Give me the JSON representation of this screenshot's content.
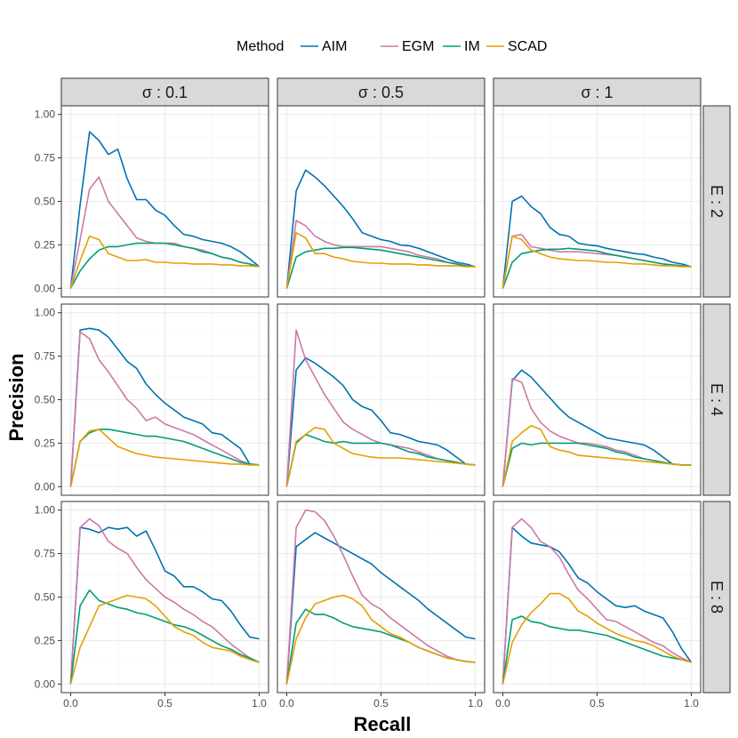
{
  "chart_data": {
    "type": "line",
    "xlabel": "Recall",
    "ylabel": "Precision",
    "xlim": [
      0,
      1
    ],
    "ylim": [
      0,
      1
    ],
    "xticks": [
      0,
      0.5,
      1
    ],
    "xtick_labels": [
      "0.0",
      "0.5",
      "1.0"
    ],
    "yticks": [
      0,
      0.25,
      0.5,
      0.75,
      1
    ],
    "ytick_labels": [
      "0.00",
      "0.25",
      "0.50",
      "0.75",
      "1.00"
    ],
    "grid": true,
    "legend": {
      "title": "Method",
      "position": "top",
      "entries": [
        {
          "name": "AIM",
          "color": "#0072B2"
        },
        {
          "name": "EGM",
          "color": "#CC79A7"
        },
        {
          "name": "IM",
          "color": "#009E73"
        },
        {
          "name": "SCAD",
          "color": "#E69F00"
        }
      ]
    },
    "col_strips": [
      "σ : 0.1",
      "σ : 0.5",
      "σ : 1"
    ],
    "row_strips": [
      "E : 2",
      "E : 4",
      "E : 8"
    ],
    "x": [
      0,
      0.05,
      0.1,
      0.15,
      0.2,
      0.25,
      0.3,
      0.35,
      0.4,
      0.45,
      0.5,
      0.55,
      0.6,
      0.65,
      0.7,
      0.75,
      0.8,
      0.85,
      0.9,
      0.95,
      1.0
    ],
    "panels": [
      {
        "row": 0,
        "col": 0,
        "series": {
          "AIM": [
            0,
            0.48,
            0.9,
            0.85,
            0.77,
            0.8,
            0.63,
            0.51,
            0.51,
            0.45,
            0.42,
            0.36,
            0.31,
            0.3,
            0.28,
            0.27,
            0.26,
            0.24,
            0.21,
            0.17,
            0.125
          ],
          "EGM": [
            0,
            0.28,
            0.57,
            0.64,
            0.5,
            0.43,
            0.36,
            0.29,
            0.27,
            0.26,
            0.26,
            0.26,
            0.24,
            0.23,
            0.22,
            0.2,
            0.18,
            0.17,
            0.15,
            0.14,
            0.125
          ],
          "IM": [
            0,
            0.1,
            0.17,
            0.22,
            0.24,
            0.24,
            0.25,
            0.26,
            0.26,
            0.26,
            0.26,
            0.25,
            0.24,
            0.23,
            0.21,
            0.2,
            0.18,
            0.17,
            0.15,
            0.14,
            0.125
          ],
          "SCAD": [
            0,
            0.16,
            0.3,
            0.28,
            0.2,
            0.18,
            0.16,
            0.16,
            0.165,
            0.15,
            0.15,
            0.145,
            0.145,
            0.14,
            0.14,
            0.14,
            0.135,
            0.135,
            0.13,
            0.13,
            0.125
          ]
        }
      },
      {
        "row": 0,
        "col": 1,
        "series": {
          "AIM": [
            0,
            0.56,
            0.68,
            0.64,
            0.59,
            0.53,
            0.47,
            0.4,
            0.32,
            0.3,
            0.28,
            0.27,
            0.25,
            0.245,
            0.23,
            0.21,
            0.19,
            0.17,
            0.15,
            0.14,
            0.125
          ],
          "EGM": [
            0,
            0.39,
            0.36,
            0.3,
            0.27,
            0.25,
            0.24,
            0.24,
            0.24,
            0.24,
            0.24,
            0.23,
            0.22,
            0.21,
            0.19,
            0.18,
            0.17,
            0.15,
            0.14,
            0.13,
            0.125
          ],
          "IM": [
            0,
            0.18,
            0.21,
            0.22,
            0.23,
            0.23,
            0.235,
            0.235,
            0.23,
            0.225,
            0.22,
            0.21,
            0.2,
            0.19,
            0.18,
            0.17,
            0.16,
            0.15,
            0.14,
            0.13,
            0.125
          ],
          "SCAD": [
            0,
            0.32,
            0.29,
            0.2,
            0.2,
            0.18,
            0.17,
            0.155,
            0.15,
            0.145,
            0.145,
            0.14,
            0.14,
            0.14,
            0.135,
            0.135,
            0.13,
            0.13,
            0.13,
            0.125,
            0.125
          ]
        }
      },
      {
        "row": 0,
        "col": 2,
        "series": {
          "AIM": [
            0,
            0.5,
            0.53,
            0.47,
            0.43,
            0.35,
            0.31,
            0.3,
            0.26,
            0.25,
            0.245,
            0.23,
            0.22,
            0.21,
            0.2,
            0.195,
            0.18,
            0.17,
            0.15,
            0.14,
            0.125
          ],
          "EGM": [
            0,
            0.3,
            0.31,
            0.24,
            0.23,
            0.22,
            0.21,
            0.21,
            0.21,
            0.205,
            0.2,
            0.195,
            0.19,
            0.18,
            0.17,
            0.16,
            0.15,
            0.14,
            0.135,
            0.13,
            0.125
          ],
          "IM": [
            0,
            0.15,
            0.2,
            0.21,
            0.22,
            0.225,
            0.225,
            0.23,
            0.225,
            0.22,
            0.215,
            0.2,
            0.19,
            0.18,
            0.17,
            0.16,
            0.15,
            0.14,
            0.135,
            0.13,
            0.125
          ],
          "SCAD": [
            0,
            0.3,
            0.28,
            0.22,
            0.2,
            0.18,
            0.17,
            0.165,
            0.16,
            0.16,
            0.155,
            0.15,
            0.15,
            0.145,
            0.14,
            0.14,
            0.135,
            0.13,
            0.13,
            0.125,
            0.125
          ]
        }
      },
      {
        "row": 1,
        "col": 0,
        "series": {
          "AIM": [
            0,
            0.9,
            0.91,
            0.9,
            0.86,
            0.79,
            0.72,
            0.68,
            0.59,
            0.53,
            0.48,
            0.44,
            0.4,
            0.38,
            0.36,
            0.31,
            0.3,
            0.26,
            0.22,
            0.13,
            0.125
          ],
          "EGM": [
            0,
            0.89,
            0.85,
            0.73,
            0.66,
            0.58,
            0.5,
            0.45,
            0.38,
            0.4,
            0.36,
            0.34,
            0.32,
            0.3,
            0.27,
            0.24,
            0.21,
            0.18,
            0.15,
            0.13,
            0.125
          ],
          "IM": [
            0,
            0.26,
            0.31,
            0.33,
            0.33,
            0.32,
            0.31,
            0.3,
            0.29,
            0.29,
            0.28,
            0.27,
            0.26,
            0.24,
            0.22,
            0.2,
            0.18,
            0.16,
            0.14,
            0.13,
            0.125
          ],
          "SCAD": [
            0,
            0.26,
            0.32,
            0.33,
            0.28,
            0.23,
            0.21,
            0.19,
            0.18,
            0.17,
            0.165,
            0.16,
            0.155,
            0.15,
            0.145,
            0.14,
            0.135,
            0.13,
            0.13,
            0.125,
            0.125
          ]
        }
      },
      {
        "row": 1,
        "col": 1,
        "series": {
          "AIM": [
            0,
            0.67,
            0.74,
            0.71,
            0.67,
            0.63,
            0.58,
            0.5,
            0.46,
            0.44,
            0.38,
            0.31,
            0.3,
            0.28,
            0.26,
            0.25,
            0.24,
            0.21,
            0.17,
            0.13,
            0.125
          ],
          "EGM": [
            0,
            0.9,
            0.73,
            0.63,
            0.53,
            0.45,
            0.37,
            0.33,
            0.3,
            0.27,
            0.25,
            0.24,
            0.23,
            0.22,
            0.2,
            0.18,
            0.16,
            0.15,
            0.14,
            0.13,
            0.125
          ],
          "IM": [
            0,
            0.25,
            0.3,
            0.28,
            0.26,
            0.25,
            0.26,
            0.25,
            0.25,
            0.25,
            0.25,
            0.24,
            0.22,
            0.2,
            0.19,
            0.17,
            0.16,
            0.15,
            0.14,
            0.13,
            0.125
          ],
          "SCAD": [
            0,
            0.26,
            0.3,
            0.34,
            0.33,
            0.25,
            0.22,
            0.19,
            0.18,
            0.17,
            0.165,
            0.165,
            0.165,
            0.16,
            0.155,
            0.15,
            0.145,
            0.14,
            0.135,
            0.13,
            0.125
          ]
        }
      },
      {
        "row": 1,
        "col": 2,
        "series": {
          "AIM": [
            0,
            0.61,
            0.67,
            0.63,
            0.57,
            0.51,
            0.45,
            0.4,
            0.37,
            0.34,
            0.31,
            0.28,
            0.27,
            0.26,
            0.25,
            0.24,
            0.21,
            0.17,
            0.13,
            0.125,
            0.125
          ],
          "EGM": [
            0,
            0.62,
            0.6,
            0.45,
            0.37,
            0.32,
            0.29,
            0.27,
            0.25,
            0.25,
            0.24,
            0.23,
            0.21,
            0.2,
            0.18,
            0.16,
            0.15,
            0.14,
            0.13,
            0.125,
            0.125
          ],
          "IM": [
            0,
            0.22,
            0.25,
            0.24,
            0.25,
            0.25,
            0.25,
            0.25,
            0.25,
            0.24,
            0.23,
            0.22,
            0.2,
            0.19,
            0.17,
            0.16,
            0.15,
            0.14,
            0.13,
            0.125,
            0.125
          ],
          "SCAD": [
            0,
            0.26,
            0.31,
            0.35,
            0.33,
            0.23,
            0.21,
            0.2,
            0.18,
            0.175,
            0.17,
            0.165,
            0.16,
            0.155,
            0.15,
            0.145,
            0.14,
            0.135,
            0.13,
            0.125,
            0.125
          ]
        }
      },
      {
        "row": 2,
        "col": 0,
        "series": {
          "AIM": [
            0,
            0.9,
            0.89,
            0.87,
            0.9,
            0.89,
            0.9,
            0.85,
            0.88,
            0.77,
            0.65,
            0.62,
            0.56,
            0.56,
            0.53,
            0.49,
            0.48,
            0.42,
            0.34,
            0.27,
            0.26
          ],
          "EGM": [
            0,
            0.9,
            0.95,
            0.91,
            0.82,
            0.78,
            0.75,
            0.67,
            0.6,
            0.55,
            0.5,
            0.47,
            0.43,
            0.4,
            0.36,
            0.33,
            0.28,
            0.23,
            0.19,
            0.15,
            0.125
          ],
          "IM": [
            0,
            0.45,
            0.54,
            0.48,
            0.46,
            0.44,
            0.43,
            0.41,
            0.4,
            0.38,
            0.36,
            0.34,
            0.33,
            0.31,
            0.28,
            0.25,
            0.22,
            0.2,
            0.17,
            0.15,
            0.125
          ],
          "SCAD": [
            0,
            0.21,
            0.33,
            0.45,
            0.47,
            0.49,
            0.51,
            0.5,
            0.49,
            0.45,
            0.39,
            0.33,
            0.3,
            0.28,
            0.24,
            0.21,
            0.2,
            0.19,
            0.16,
            0.14,
            0.125
          ]
        }
      },
      {
        "row": 2,
        "col": 1,
        "series": {
          "AIM": [
            0,
            0.79,
            0.83,
            0.87,
            0.84,
            0.81,
            0.78,
            0.75,
            0.72,
            0.69,
            0.64,
            0.6,
            0.56,
            0.52,
            0.48,
            0.43,
            0.39,
            0.35,
            0.31,
            0.27,
            0.26
          ],
          "EGM": [
            0,
            0.9,
            1.0,
            0.99,
            0.94,
            0.85,
            0.74,
            0.62,
            0.51,
            0.46,
            0.43,
            0.38,
            0.34,
            0.3,
            0.26,
            0.22,
            0.19,
            0.16,
            0.14,
            0.13,
            0.125
          ],
          "IM": [
            0,
            0.35,
            0.43,
            0.4,
            0.4,
            0.38,
            0.35,
            0.33,
            0.32,
            0.31,
            0.3,
            0.28,
            0.26,
            0.24,
            0.21,
            0.19,
            0.17,
            0.15,
            0.14,
            0.13,
            0.125
          ],
          "SCAD": [
            0,
            0.26,
            0.38,
            0.46,
            0.48,
            0.5,
            0.51,
            0.49,
            0.45,
            0.37,
            0.33,
            0.29,
            0.27,
            0.24,
            0.21,
            0.19,
            0.17,
            0.15,
            0.14,
            0.13,
            0.125
          ]
        }
      },
      {
        "row": 2,
        "col": 2,
        "series": {
          "AIM": [
            0,
            0.9,
            0.85,
            0.81,
            0.8,
            0.79,
            0.76,
            0.69,
            0.61,
            0.58,
            0.53,
            0.49,
            0.45,
            0.44,
            0.45,
            0.42,
            0.4,
            0.38,
            0.3,
            0.2,
            0.125
          ],
          "EGM": [
            0,
            0.9,
            0.95,
            0.9,
            0.82,
            0.79,
            0.73,
            0.63,
            0.54,
            0.49,
            0.43,
            0.37,
            0.36,
            0.33,
            0.3,
            0.27,
            0.24,
            0.22,
            0.18,
            0.15,
            0.125
          ],
          "IM": [
            0,
            0.37,
            0.39,
            0.36,
            0.35,
            0.33,
            0.32,
            0.31,
            0.31,
            0.3,
            0.29,
            0.28,
            0.26,
            0.24,
            0.22,
            0.2,
            0.18,
            0.16,
            0.15,
            0.14,
            0.125
          ],
          "SCAD": [
            0,
            0.24,
            0.34,
            0.41,
            0.46,
            0.52,
            0.52,
            0.49,
            0.42,
            0.39,
            0.35,
            0.32,
            0.29,
            0.27,
            0.25,
            0.24,
            0.22,
            0.19,
            0.16,
            0.14,
            0.125
          ]
        }
      }
    ]
  }
}
